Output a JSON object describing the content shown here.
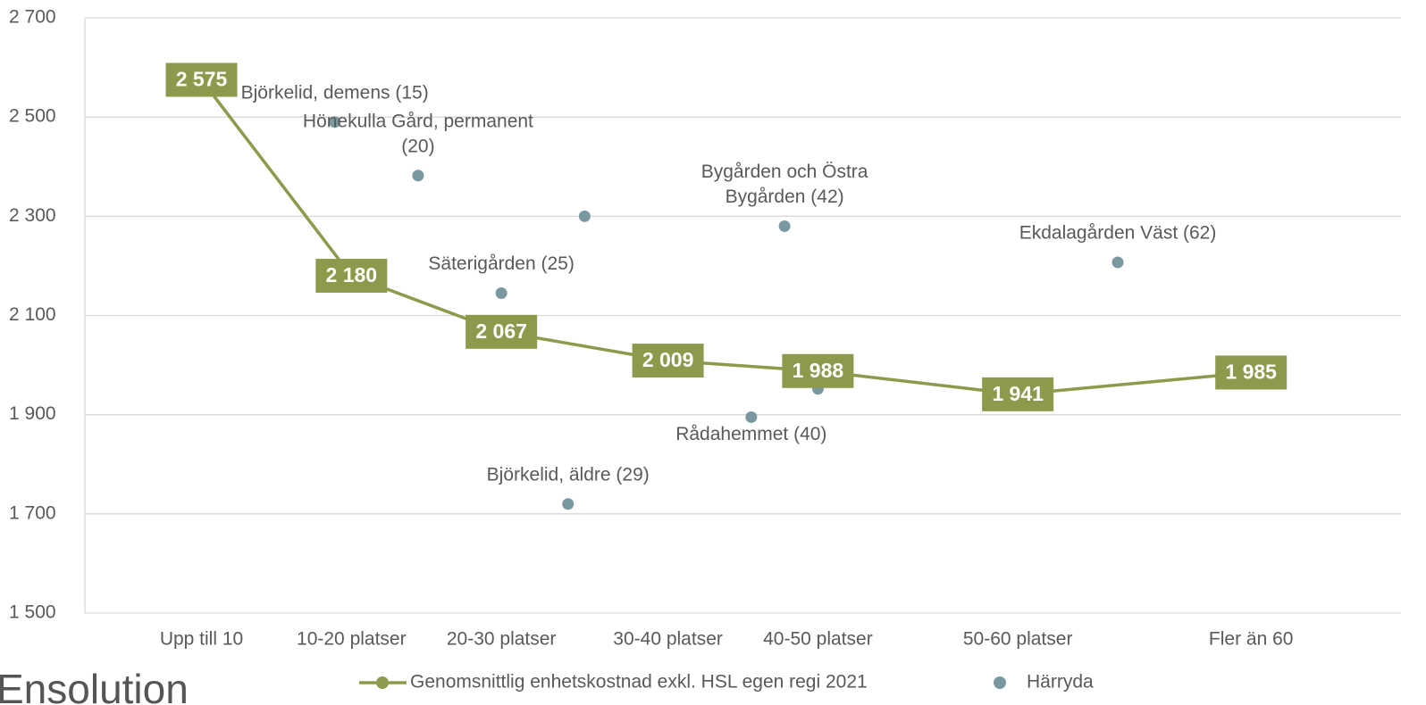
{
  "chart_data": {
    "type": "line_scatter",
    "logo": "Ensolution",
    "xlim": [
      0,
      79
    ],
    "ylim": [
      1500,
      2700
    ],
    "yticks": [
      {
        "value": 1500,
        "label": "1 500"
      },
      {
        "value": 1700,
        "label": "1 700"
      },
      {
        "value": 1900,
        "label": "1 900"
      },
      {
        "value": 2100,
        "label": "2 100"
      },
      {
        "value": 2300,
        "label": "2 300"
      },
      {
        "value": 2500,
        "label": "2 500"
      },
      {
        "value": 2700,
        "label": "2 700"
      }
    ],
    "grid": true,
    "categories": [
      "Upp till 10",
      "10-20 platser",
      "20-30 platser",
      "30-40 platser",
      "40-50 platser",
      "50-60 platser",
      "Fler än 60"
    ],
    "series": [
      {
        "name": "Genomsnittlig enhetskostnad exkl. HSL egen regi 2021",
        "type": "line",
        "color": "#8b9a4b",
        "x": [
          7,
          16,
          25,
          35,
          44,
          56,
          70
        ],
        "values": [
          2575,
          2180,
          2067,
          2009,
          1988,
          1941,
          1985
        ],
        "value_labels": [
          "2 575",
          "2 180",
          "2 067",
          "2 009",
          "1 988",
          "1 941",
          "1 985"
        ]
      },
      {
        "name": "Härryda",
        "type": "scatter",
        "color": "#7a98a0",
        "x": [
          15,
          20,
          25,
          29,
          40,
          42,
          62,
          30,
          44
        ],
        "values": [
          2490,
          2382,
          2145,
          1720,
          1895,
          2280,
          2207,
          2300,
          1952
        ],
        "point_labels": [
          [
            "Björkelid, demens (15)"
          ],
          [
            "Hönekulla Gård, permanent",
            "(20)"
          ],
          [
            "Säterigården (25)"
          ],
          [
            "Björkelid, äldre (29)"
          ],
          [
            "Rådahemmet (40)"
          ],
          [
            "Bygården och Östra",
            "Bygården (42)"
          ],
          [
            "Ekdalagården Väst (62)"
          ],
          null,
          null
        ]
      }
    ]
  }
}
